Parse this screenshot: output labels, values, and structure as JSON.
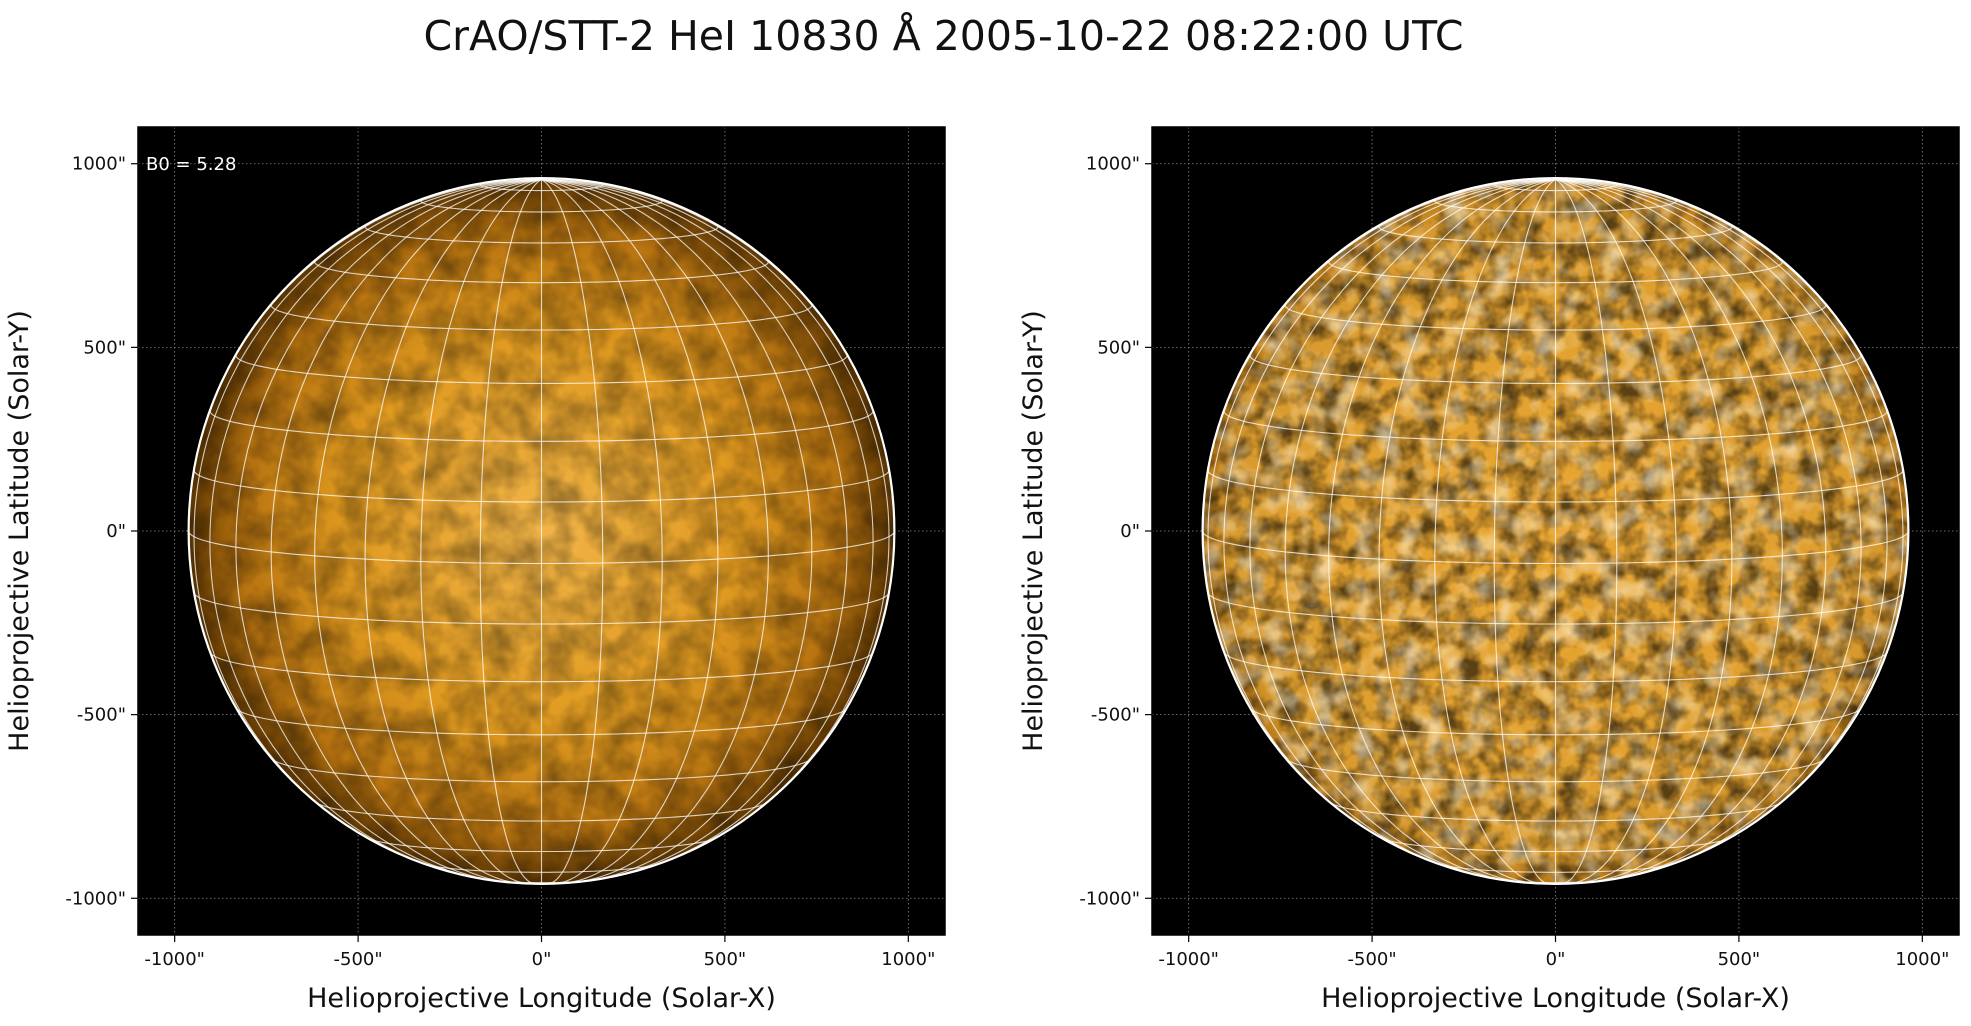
{
  "title": "CrAO/STT-2 HeI 10830 Å 2005-10-22 08:22:00 UTC",
  "colors": {
    "disk_light": "#f0b040",
    "disk_mid": "#d48a10",
    "disk_dark": "#7a4a05",
    "sky": "#000000",
    "grid": "#ffffff"
  },
  "panels": [
    {
      "id": "left",
      "description_unit": "arcsec",
      "xlabel": "Helioprojective Longitude (Solar-X)",
      "ylabel": "Helioprojective Latitude (Solar-Y)",
      "xticks": [
        "-1000\"",
        "-500\"",
        "0\"",
        "500\"",
        "1000\""
      ],
      "yticks": [
        "1000\"",
        "500\"",
        "0\"",
        "-500\"",
        "-1000\""
      ],
      "tick_values": [
        -1000,
        -500,
        0,
        500,
        1000
      ],
      "annotation": "B0 = 5.28"
    },
    {
      "id": "right",
      "description_unit": "arcsec",
      "xlabel": "Helioprojective Longitude (Solar-X)",
      "ylabel": "Helioprojective Latitude (Solar-Y)",
      "xticks": [
        "-1000\"",
        "-500\"",
        "0\"",
        "500\"",
        "1000\""
      ],
      "yticks": [
        "1000\"",
        "500\"",
        "0\"",
        "-500\"",
        "-1000\""
      ],
      "tick_values": [
        -1000,
        -500,
        0,
        500,
        1000
      ],
      "annotation": ""
    }
  ],
  "data_range_arcsec": [
    -1100,
    1100
  ],
  "solar_radius_arcsec": 962,
  "b0_deg": 5.28
}
